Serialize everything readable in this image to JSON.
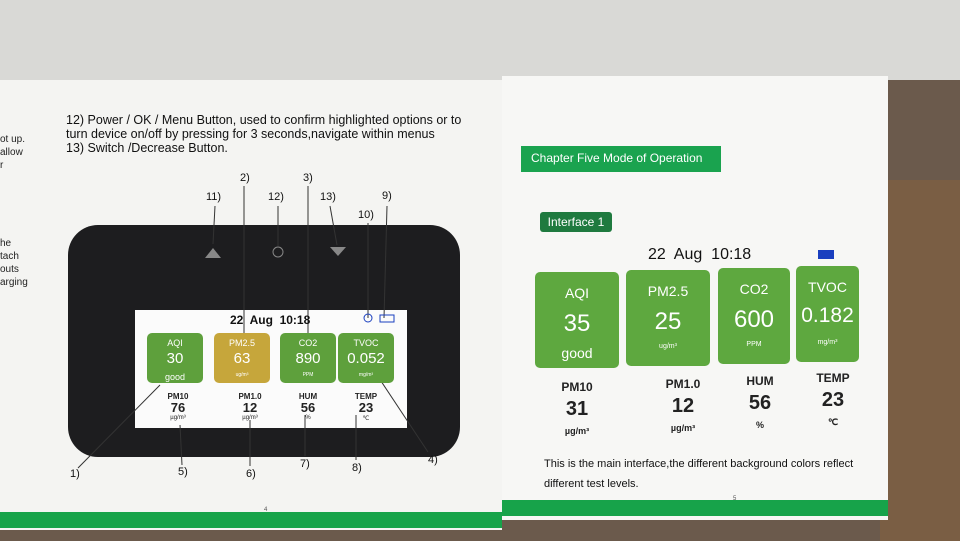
{
  "edge_text": [
    "ot up.",
    "allow",
    "r",
    "he",
    "tach",
    "outs",
    "arging"
  ],
  "left_page": {
    "instructions": [
      "12) Power / OK / Menu Button, used to confirm highlighted options or to",
      "turn device on/off by pressing for 3 seconds,navigate within menus",
      "13) Switch /Decrease Button."
    ],
    "callouts": [
      "1)",
      "2)",
      "3)",
      "4)",
      "5)",
      "6)",
      "7)",
      "8)",
      "9)",
      "10)",
      "11)",
      "12)",
      "13)"
    ],
    "screen": {
      "datetime": "22  Aug  10:18",
      "tiles": [
        {
          "label": "AQI",
          "value": "30",
          "sub": "good"
        },
        {
          "label": "PM2.5",
          "value": "63",
          "sub": "ug/m³"
        },
        {
          "label": "CO2",
          "value": "890",
          "sub": "PPM"
        },
        {
          "label": "TVOC",
          "value": "0.052",
          "sub": "mg/m³"
        }
      ],
      "stats": [
        {
          "label": "PM10",
          "value": "76",
          "unit": "µg/m³"
        },
        {
          "label": "PM1.0",
          "value": "12",
          "unit": "µg/m³"
        },
        {
          "label": "HUM",
          "value": "56",
          "unit": "%"
        },
        {
          "label": "TEMP",
          "value": "23",
          "unit": "℃"
        }
      ]
    },
    "page_number": "4"
  },
  "right_page": {
    "chapter": "Chapter Five Mode of Operation",
    "badge": "Interface 1",
    "screen": {
      "datetime": "22  Aug  10:18",
      "tiles": [
        {
          "label": "AQI",
          "value": "35",
          "sub": "good"
        },
        {
          "label": "PM2.5",
          "value": "25",
          "sub": "ug/m³"
        },
        {
          "label": "CO2",
          "value": "600",
          "sub": "PPM"
        },
        {
          "label": "TVOC",
          "value": "0.182",
          "sub": "mg/m³"
        }
      ],
      "stats": [
        {
          "label": "PM10",
          "value": "31",
          "unit": "µg/m³"
        },
        {
          "label": "PM1.0",
          "value": "12",
          "unit": "µg/m³"
        },
        {
          "label": "HUM",
          "value": "56",
          "unit": "%"
        },
        {
          "label": "TEMP",
          "value": "23",
          "unit": "℃"
        }
      ]
    },
    "caption": [
      "This is the main interface,the different background colors reflect",
      "different test levels."
    ],
    "page_number": "5"
  }
}
